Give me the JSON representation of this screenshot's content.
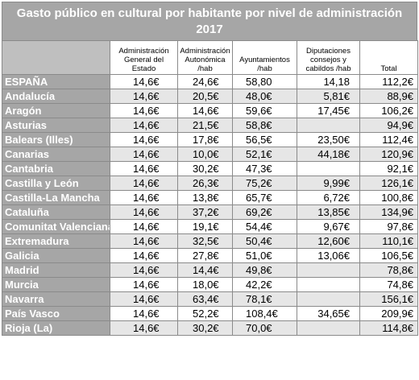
{
  "title": "Gasto público en cultural por habitante por nivel de administración 2017",
  "headers": {
    "region": "",
    "estado": "Administración General del Estado",
    "autonomica": "Administración Autonómica /hab",
    "ayuntamientos": "Ayuntamientos /hab",
    "diputaciones": "Diputaciones consejos y cabildos /hab",
    "total": "Total"
  },
  "rows": [
    {
      "name": "ESPAÑA",
      "estado": "14,6€",
      "autonomica": "24,6€",
      "ayuntamientos": "58,80",
      "diputaciones": "14,18",
      "total": "112,2€"
    },
    {
      "name": "Andalucía",
      "estado": "14,6€",
      "autonomica": "20,5€",
      "ayuntamientos": "48,0€",
      "diputaciones": "5,81€",
      "total": "88,9€"
    },
    {
      "name": "Aragón",
      "estado": "14,6€",
      "autonomica": "14,6€",
      "ayuntamientos": "59,6€",
      "diputaciones": "17,45€",
      "total": "106,2€"
    },
    {
      "name": "Asturias",
      "estado": "14,6€",
      "autonomica": "21,5€",
      "ayuntamientos": "58,8€",
      "diputaciones": "",
      "total": "94,9€"
    },
    {
      "name": "Balears (Illes)",
      "estado": "14,6€",
      "autonomica": "17,8€",
      "ayuntamientos": "56,5€",
      "diputaciones": "23,50€",
      "total": "112,4€"
    },
    {
      "name": "Canarias",
      "estado": "14,6€",
      "autonomica": "10,0€",
      "ayuntamientos": "52,1€",
      "diputaciones": "44,18€",
      "total": "120,9€"
    },
    {
      "name": "Cantabria",
      "estado": "14,6€",
      "autonomica": "30,2€",
      "ayuntamientos": "47,3€",
      "diputaciones": "",
      "total": "92,1€"
    },
    {
      "name": "Castilla y León",
      "estado": "14,6€",
      "autonomica": "26,3€",
      "ayuntamientos": "75,2€",
      "diputaciones": "9,99€",
      "total": "126,1€"
    },
    {
      "name": "Castilla-La Mancha",
      "estado": "14,6€",
      "autonomica": "13,8€",
      "ayuntamientos": "65,7€",
      "diputaciones": "6,72€",
      "total": "100,8€"
    },
    {
      "name": "Cataluña",
      "estado": "14,6€",
      "autonomica": "37,2€",
      "ayuntamientos": "69,2€",
      "diputaciones": "13,85€",
      "total": "134,9€"
    },
    {
      "name": "Comunitat Valenciana",
      "estado": "14,6€",
      "autonomica": "19,1€",
      "ayuntamientos": "54,4€",
      "diputaciones": "9,67€",
      "total": "97,8€"
    },
    {
      "name": "Extremadura",
      "estado": "14,6€",
      "autonomica": "32,5€",
      "ayuntamientos": "50,4€",
      "diputaciones": "12,60€",
      "total": "110,1€"
    },
    {
      "name": "Galicia",
      "estado": "14,6€",
      "autonomica": "27,8€",
      "ayuntamientos": "51,0€",
      "diputaciones": "13,06€",
      "total": "106,5€"
    },
    {
      "name": "Madrid",
      "estado": "14,6€",
      "autonomica": "14,4€",
      "ayuntamientos": "49,8€",
      "diputaciones": "",
      "total": "78,8€"
    },
    {
      "name": "Murcia",
      "estado": "14,6€",
      "autonomica": "18,0€",
      "ayuntamientos": "42,2€",
      "diputaciones": "",
      "total": "74,8€"
    },
    {
      "name": "Navarra",
      "estado": "14,6€",
      "autonomica": "63,4€",
      "ayuntamientos": "78,1€",
      "diputaciones": "",
      "total": "156,1€"
    },
    {
      "name": "País Vasco",
      "estado": "14,6€",
      "autonomica": "52,2€",
      "ayuntamientos": "108,4€",
      "diputaciones": "34,65€",
      "total": "209,9€"
    },
    {
      "name": "Rioja (La)",
      "estado": "14,6€",
      "autonomica": "30,2€",
      "ayuntamientos": "70,0€",
      "diputaciones": "",
      "total": "114,8€"
    }
  ],
  "colors": {
    "header_fill": "#a6a6a6",
    "row_alt_fill": "#e6e6e6",
    "header_text": "#ffffff"
  }
}
